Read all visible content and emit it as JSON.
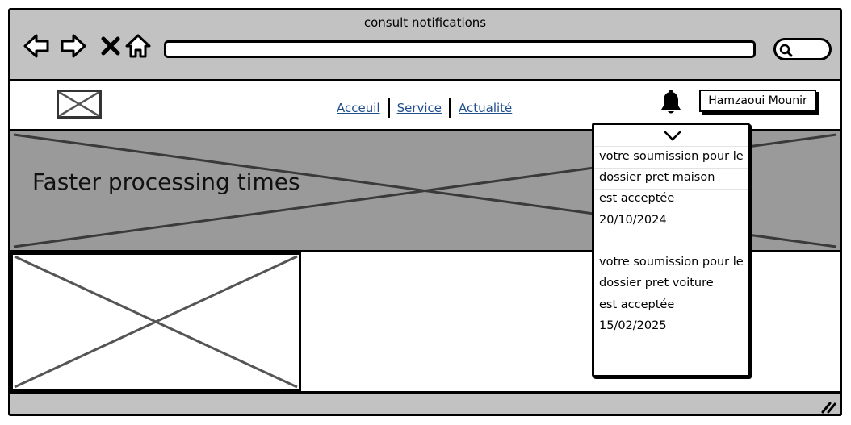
{
  "window": {
    "title": "consult notifications"
  },
  "browser": {
    "url_value": ""
  },
  "nav": {
    "links": [
      "Acceuil",
      "Service",
      "Actualité"
    ]
  },
  "user": {
    "name": "Hamzaoui Mounir"
  },
  "hero": {
    "title": "Faster processing times"
  },
  "notifications": [
    {
      "line1": "votre soumission pour le",
      "line2": "dossier pret maison",
      "line3": "est acceptée",
      "date": "20/10/2024"
    },
    {
      "line1": "votre soumission pour le",
      "line2": "dossier pret voiture",
      "line3": "est acceptée",
      "date": "15/02/2025"
    }
  ],
  "icons": {
    "back": "arrow-left-icon",
    "forward": "arrow-right-icon",
    "close": "close-icon",
    "home": "home-icon",
    "search": "search-icon",
    "bell": "bell-icon",
    "chevron": "chevron-down-icon",
    "resize": "resize-grip-icon"
  },
  "colors": {
    "chrome": "#c2c2c2",
    "hero": "#9a9a9a",
    "link": "#1f4e8c"
  }
}
